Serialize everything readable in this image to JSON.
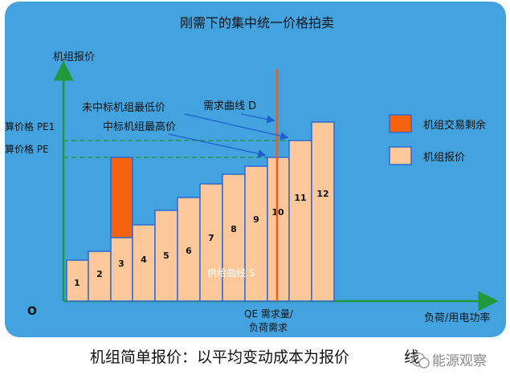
{
  "title": "刚需下的集中统一价格拍卖",
  "y_axis_label": "机组报价",
  "x_axis_label": "负荷/用电功率",
  "origin_label": "O",
  "price_labels": {
    "pe1": "算价格 PE1",
    "pe": "算价格 PE"
  },
  "annotations": {
    "lowest_unaccepted": "未中标机组最低价",
    "highest_accepted": "中标机组最高价",
    "demand_curve": "需求曲线 D",
    "supply_curve": "供给曲线 S",
    "qe_line1": "QE 需求量/",
    "qe_line2": "负荷需求"
  },
  "legend": {
    "surplus": "机组交易剩余",
    "bid": "机组报价"
  },
  "blocks": [
    "1",
    "2",
    "3",
    "4",
    "5",
    "6",
    "7",
    "8",
    "9",
    "10",
    "11",
    "12"
  ],
  "caption": "机组简单报价：以平均变动成本为报价",
  "caption_tail": "线",
  "watermark": "能源观察",
  "colors": {
    "background": "#43a3df",
    "bar_fill": "#fcc89a",
    "bar_stroke": "#2d6bd6",
    "surplus_fill": "#f4620f",
    "axis": "#1e9a3c",
    "demand_line": "#f05a1a",
    "text": "#111111"
  }
}
